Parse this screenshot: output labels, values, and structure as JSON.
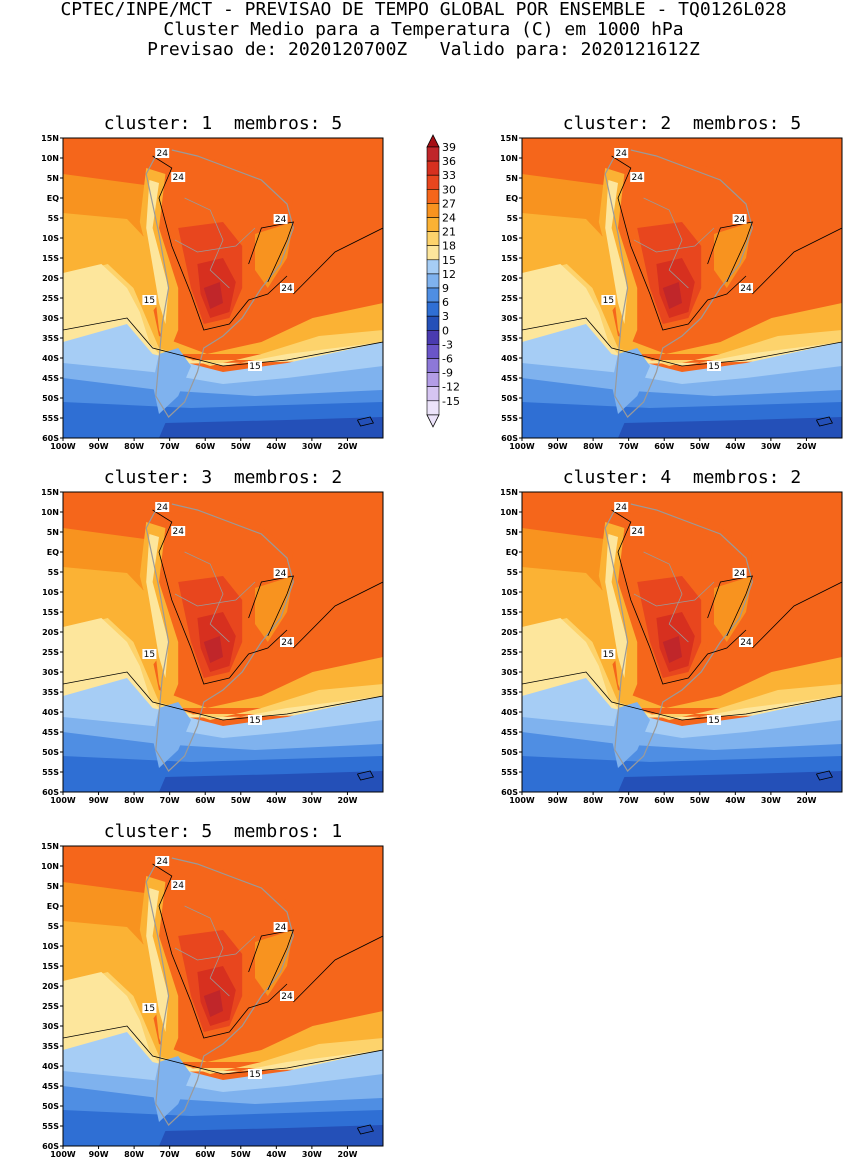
{
  "header": {
    "line1": "CPTEC/INPE/MCT - PREVISAO DE TEMPO GLOBAL POR ENSEMBLE - TQ0126L028",
    "line2": "Cluster Medio para a Temperatura (C) em 1000 hPa",
    "line3": "Previsao de: 2020120700Z   Valido para: 2020121612Z"
  },
  "panels": [
    {
      "title": "cluster: 1  membros: 5"
    },
    {
      "title": "cluster: 2  membros: 5"
    },
    {
      "title": "cluster: 3  membros: 2"
    },
    {
      "title": "cluster: 4  membros: 2"
    },
    {
      "title": "cluster: 5  membros: 1"
    }
  ],
  "lat_labels": [
    "15N",
    "10N",
    "5N",
    "EQ",
    "5S",
    "10S",
    "15S",
    "20S",
    "25S",
    "30S",
    "35S",
    "40S",
    "45S",
    "50S",
    "55S",
    "60S"
  ],
  "lon_labels": [
    "100W",
    "90W",
    "80W",
    "70W",
    "60W",
    "50W",
    "40W",
    "30W",
    "20W"
  ],
  "colorbar": {
    "levels": [
      "39",
      "36",
      "33",
      "30",
      "27",
      "24",
      "21",
      "18",
      "15",
      "12",
      "9",
      "6",
      "3",
      "0",
      "-3",
      "-6",
      "-9",
      "-12",
      "-15"
    ],
    "colors": [
      "#a50f15",
      "#c0262a",
      "#d7301f",
      "#e8461e",
      "#f5661b",
      "#f8931f",
      "#fbb234",
      "#fdd36c",
      "#fde69c",
      "#a6cdf5",
      "#7fb2ee",
      "#4f8ee3",
      "#2f6fd4",
      "#2450b8",
      "#4a3bb0",
      "#6a55c8",
      "#8d78d8",
      "#b39de6",
      "#d6c5f2",
      "#ece3fa"
    ]
  },
  "contour_labels": {
    "c24": "24",
    "c15": "15"
  }
}
